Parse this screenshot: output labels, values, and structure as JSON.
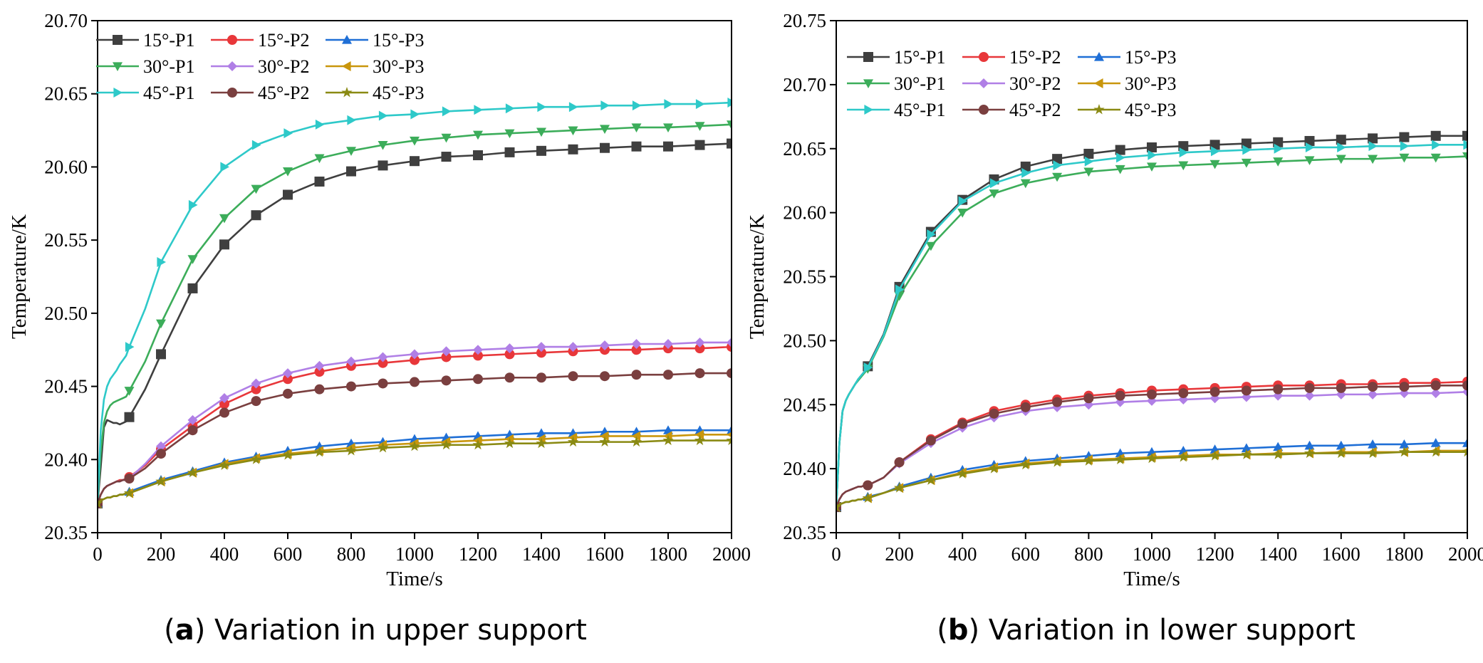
{
  "chart_data": [
    {
      "type": "line",
      "panel": "a",
      "caption_letter": "a",
      "caption_text": "Variation in upper support",
      "xlabel": "Time/s",
      "ylabel": "Temperature/K",
      "xlim": [
        0,
        2000
      ],
      "ylim": [
        20.35,
        20.7
      ],
      "xticks": [
        0,
        200,
        400,
        600,
        800,
        1000,
        1200,
        1400,
        1600,
        1800,
        2000
      ],
      "yticks": [
        20.35,
        20.4,
        20.45,
        20.5,
        20.55,
        20.6,
        20.65,
        20.7
      ],
      "ytick_labels": [
        "20.35",
        "20.40",
        "20.45",
        "20.50",
        "20.55",
        "20.60",
        "20.65",
        "20.70"
      ],
      "grid": false,
      "legend_position": "top-left",
      "x": [
        0,
        10,
        20,
        30,
        40,
        50,
        60,
        70,
        80,
        90,
        100,
        150,
        200,
        300,
        400,
        500,
        600,
        700,
        800,
        900,
        1000,
        1100,
        1200,
        1300,
        1400,
        1500,
        1600,
        1700,
        1800,
        1900,
        2000
      ],
      "marker_x": [
        0,
        100,
        200,
        300,
        400,
        500,
        600,
        700,
        800,
        900,
        1000,
        1100,
        1200,
        1300,
        1400,
        1500,
        1600,
        1700,
        1800,
        1900,
        2000
      ],
      "series": [
        {
          "name": "15°-P1",
          "color": "#3f3f3f",
          "marker": "square",
          "y": [
            20.37,
            20.395,
            20.422,
            20.427,
            20.426,
            20.425,
            20.425,
            20.424,
            20.425,
            20.426,
            20.429,
            20.448,
            20.472,
            20.517,
            20.547,
            20.567,
            20.581,
            20.59,
            20.597,
            20.601,
            20.604,
            20.607,
            20.608,
            20.61,
            20.611,
            20.612,
            20.613,
            20.614,
            20.614,
            20.615,
            20.616
          ]
        },
        {
          "name": "15°-P2",
          "color": "#e8373a",
          "marker": "circle",
          "y": [
            20.37,
            20.376,
            20.38,
            20.382,
            20.383,
            20.384,
            20.385,
            20.386,
            20.386,
            20.387,
            20.388,
            20.396,
            20.407,
            20.423,
            20.438,
            20.448,
            20.455,
            20.46,
            20.464,
            20.466,
            20.468,
            20.47,
            20.471,
            20.472,
            20.473,
            20.474,
            20.475,
            20.475,
            20.476,
            20.476,
            20.477
          ]
        },
        {
          "name": "15°-P3",
          "color": "#1f6fd6",
          "marker": "triangle-up",
          "y": [
            20.37,
            20.372,
            20.373,
            20.374,
            20.374,
            20.375,
            20.375,
            20.376,
            20.376,
            20.377,
            20.378,
            20.382,
            20.386,
            20.392,
            20.398,
            20.402,
            20.406,
            20.409,
            20.411,
            20.412,
            20.414,
            20.415,
            20.416,
            20.417,
            20.418,
            20.418,
            20.419,
            20.419,
            20.42,
            20.42,
            20.42
          ]
        },
        {
          "name": "30°-P1",
          "color": "#3cad5a",
          "marker": "triangle-down",
          "y": [
            20.37,
            20.405,
            20.425,
            20.433,
            20.437,
            20.439,
            20.44,
            20.441,
            20.442,
            20.443,
            20.447,
            20.467,
            20.493,
            20.537,
            20.565,
            20.585,
            20.597,
            20.606,
            20.611,
            20.615,
            20.618,
            20.62,
            20.622,
            20.623,
            20.624,
            20.625,
            20.626,
            20.627,
            20.627,
            20.628,
            20.629
          ]
        },
        {
          "name": "30°-P2",
          "color": "#b07fe6",
          "marker": "diamond",
          "y": [
            20.37,
            20.376,
            20.38,
            20.382,
            20.383,
            20.384,
            20.385,
            20.385,
            20.386,
            20.386,
            20.387,
            20.397,
            20.409,
            20.427,
            20.442,
            20.452,
            20.459,
            20.464,
            20.467,
            20.47,
            20.472,
            20.474,
            20.475,
            20.476,
            20.477,
            20.477,
            20.478,
            20.479,
            20.479,
            20.48,
            20.48
          ]
        },
        {
          "name": "30°-P3",
          "color": "#c9960c",
          "marker": "triangle-left",
          "y": [
            20.37,
            20.372,
            20.373,
            20.374,
            20.374,
            20.375,
            20.375,
            20.376,
            20.376,
            20.377,
            20.377,
            20.381,
            20.385,
            20.391,
            20.397,
            20.401,
            20.404,
            20.406,
            20.408,
            20.41,
            20.411,
            20.412,
            20.413,
            20.414,
            20.414,
            20.415,
            20.416,
            20.416,
            20.416,
            20.417,
            20.417
          ]
        },
        {
          "name": "45°-P1",
          "color": "#2ec9c9",
          "marker": "triangle-right",
          "y": [
            20.37,
            20.42,
            20.441,
            20.45,
            20.455,
            20.458,
            20.461,
            20.465,
            20.468,
            20.471,
            20.477,
            20.503,
            20.535,
            20.574,
            20.6,
            20.615,
            20.623,
            20.629,
            20.632,
            20.635,
            20.636,
            20.638,
            20.639,
            20.64,
            20.641,
            20.641,
            20.642,
            20.642,
            20.643,
            20.643,
            20.644
          ]
        },
        {
          "name": "45°-P2",
          "color": "#7a3f3f",
          "marker": "circle",
          "y": [
            20.37,
            20.376,
            20.38,
            20.382,
            20.383,
            20.384,
            20.385,
            20.385,
            20.386,
            20.386,
            20.387,
            20.394,
            20.404,
            20.42,
            20.432,
            20.44,
            20.445,
            20.448,
            20.45,
            20.452,
            20.453,
            20.454,
            20.455,
            20.456,
            20.456,
            20.457,
            20.457,
            20.458,
            20.458,
            20.459,
            20.459
          ]
        },
        {
          "name": "45°-P3",
          "color": "#8a8a13",
          "marker": "star",
          "y": [
            20.37,
            20.372,
            20.373,
            20.374,
            20.374,
            20.375,
            20.375,
            20.376,
            20.376,
            20.377,
            20.377,
            20.381,
            20.385,
            20.391,
            20.396,
            20.4,
            20.403,
            20.405,
            20.406,
            20.408,
            20.409,
            20.41,
            20.41,
            20.411,
            20.411,
            20.412,
            20.412,
            20.412,
            20.413,
            20.413,
            20.413
          ]
        }
      ]
    },
    {
      "type": "line",
      "panel": "b",
      "caption_letter": "b",
      "caption_text": "Variation in lower support",
      "xlabel": "Time/s",
      "ylabel": "Temperature/K",
      "xlim": [
        0,
        2000
      ],
      "ylim": [
        20.35,
        20.75
      ],
      "xticks": [
        0,
        200,
        400,
        600,
        800,
        1000,
        1200,
        1400,
        1600,
        1800,
        2000
      ],
      "yticks": [
        20.35,
        20.4,
        20.45,
        20.5,
        20.55,
        20.6,
        20.65,
        20.7,
        20.75
      ],
      "ytick_labels": [
        "20.35",
        "20.40",
        "20.45",
        "20.50",
        "20.55",
        "20.60",
        "20.65",
        "20.70",
        "20.75"
      ],
      "grid": false,
      "legend_position": "top-left",
      "x": [
        0,
        10,
        20,
        30,
        40,
        50,
        60,
        70,
        80,
        90,
        100,
        150,
        200,
        300,
        400,
        500,
        600,
        700,
        800,
        900,
        1000,
        1100,
        1200,
        1300,
        1400,
        1500,
        1600,
        1700,
        1800,
        1900,
        2000
      ],
      "marker_x": [
        0,
        100,
        200,
        300,
        400,
        500,
        600,
        700,
        800,
        900,
        1000,
        1100,
        1200,
        1300,
        1400,
        1500,
        1600,
        1700,
        1800,
        1900,
        2000
      ],
      "series": [
        {
          "name": "15°-P1",
          "color": "#3f3f3f",
          "marker": "square",
          "y": [
            20.37,
            20.42,
            20.445,
            20.453,
            20.458,
            20.462,
            20.466,
            20.47,
            20.473,
            20.476,
            20.48,
            20.505,
            20.542,
            20.585,
            20.61,
            20.626,
            20.636,
            20.642,
            20.646,
            20.649,
            20.651,
            20.652,
            20.653,
            20.654,
            20.655,
            20.656,
            20.657,
            20.658,
            20.659,
            20.66,
            20.66
          ]
        },
        {
          "name": "15°-P2",
          "color": "#e8373a",
          "marker": "circle",
          "y": [
            20.37,
            20.376,
            20.38,
            20.382,
            20.383,
            20.384,
            20.385,
            20.386,
            20.386,
            20.387,
            20.387,
            20.393,
            20.405,
            20.423,
            20.436,
            20.445,
            20.45,
            20.454,
            20.457,
            20.459,
            20.461,
            20.462,
            20.463,
            20.464,
            20.465,
            20.465,
            20.466,
            20.466,
            20.467,
            20.467,
            20.468
          ]
        },
        {
          "name": "15°-P3",
          "color": "#1f6fd6",
          "marker": "triangle-up",
          "y": [
            20.37,
            20.372,
            20.373,
            20.374,
            20.374,
            20.375,
            20.375,
            20.376,
            20.376,
            20.377,
            20.378,
            20.381,
            20.386,
            20.393,
            20.399,
            20.403,
            20.406,
            20.408,
            20.41,
            20.412,
            20.413,
            20.414,
            20.415,
            20.416,
            20.417,
            20.418,
            20.418,
            20.419,
            20.419,
            20.42,
            20.42
          ]
        },
        {
          "name": "30°-P1",
          "color": "#3cad5a",
          "marker": "triangle-down",
          "y": [
            20.37,
            20.42,
            20.445,
            20.453,
            20.458,
            20.462,
            20.466,
            20.469,
            20.472,
            20.475,
            20.478,
            20.503,
            20.535,
            20.574,
            20.6,
            20.615,
            20.623,
            20.628,
            20.632,
            20.634,
            20.636,
            20.637,
            20.638,
            20.639,
            20.64,
            20.641,
            20.642,
            20.642,
            20.643,
            20.643,
            20.644
          ]
        },
        {
          "name": "30°-P2",
          "color": "#b07fe6",
          "marker": "diamond",
          "y": [
            20.37,
            20.376,
            20.38,
            20.382,
            20.383,
            20.384,
            20.385,
            20.386,
            20.386,
            20.387,
            20.387,
            20.393,
            20.404,
            20.42,
            20.432,
            20.44,
            20.445,
            20.448,
            20.45,
            20.452,
            20.453,
            20.454,
            20.455,
            20.456,
            20.457,
            20.457,
            20.458,
            20.458,
            20.459,
            20.459,
            20.46
          ]
        },
        {
          "name": "30°-P3",
          "color": "#c9960c",
          "marker": "triangle-left",
          "y": [
            20.37,
            20.372,
            20.373,
            20.374,
            20.374,
            20.375,
            20.375,
            20.376,
            20.376,
            20.377,
            20.377,
            20.381,
            20.385,
            20.391,
            20.397,
            20.401,
            20.404,
            20.406,
            20.407,
            20.408,
            20.409,
            20.41,
            20.411,
            20.411,
            20.412,
            20.412,
            20.413,
            20.413,
            20.413,
            20.414,
            20.414
          ]
        },
        {
          "name": "45°-P1",
          "color": "#2ec9c9",
          "marker": "triangle-right",
          "y": [
            20.37,
            20.42,
            20.445,
            20.453,
            20.458,
            20.462,
            20.466,
            20.47,
            20.473,
            20.476,
            20.479,
            20.504,
            20.54,
            20.583,
            20.609,
            20.623,
            20.631,
            20.637,
            20.64,
            20.643,
            20.645,
            20.647,
            20.648,
            20.649,
            20.65,
            20.651,
            20.651,
            20.652,
            20.652,
            20.653,
            20.653
          ]
        },
        {
          "name": "45°-P2",
          "color": "#7a3f3f",
          "marker": "circle",
          "y": [
            20.37,
            20.376,
            20.38,
            20.382,
            20.383,
            20.384,
            20.385,
            20.386,
            20.386,
            20.387,
            20.387,
            20.393,
            20.405,
            20.422,
            20.435,
            20.443,
            20.448,
            20.452,
            20.455,
            20.457,
            20.458,
            20.459,
            20.46,
            20.461,
            20.462,
            20.463,
            20.463,
            20.464,
            20.464,
            20.465,
            20.465
          ]
        },
        {
          "name": "45°-P3",
          "color": "#8a8a13",
          "marker": "star",
          "y": [
            20.37,
            20.372,
            20.373,
            20.374,
            20.374,
            20.375,
            20.375,
            20.376,
            20.376,
            20.377,
            20.377,
            20.381,
            20.385,
            20.391,
            20.396,
            20.4,
            20.403,
            20.405,
            20.406,
            20.407,
            20.408,
            20.409,
            20.41,
            20.411,
            20.411,
            20.412,
            20.412,
            20.412,
            20.413,
            20.413,
            20.413
          ]
        }
      ]
    }
  ]
}
